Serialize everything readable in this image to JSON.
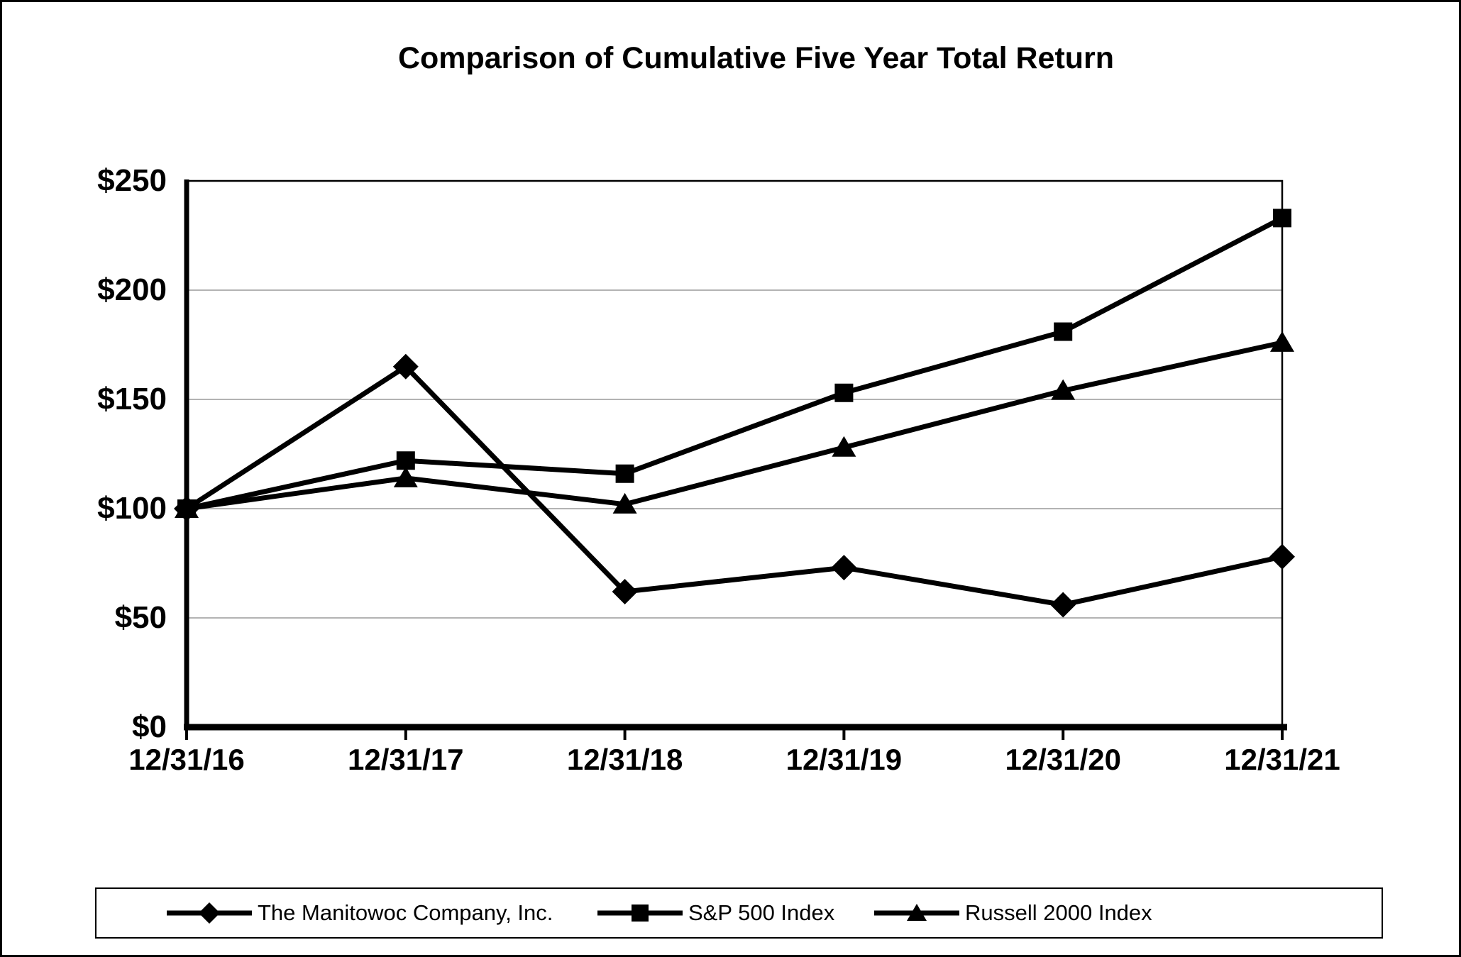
{
  "chart_data": {
    "type": "line",
    "title": "Comparison of Cumulative Five Year Total Return",
    "x_labels": [
      "12/31/16",
      "12/31/17",
      "12/31/18",
      "12/31/19",
      "12/31/20",
      "12/31/21"
    ],
    "y_ticks": [
      "$0",
      "$50",
      "$100",
      "$150",
      "$200",
      "$250"
    ],
    "y_tick_values": [
      0,
      50,
      100,
      150,
      200,
      250
    ],
    "ylim": [
      0,
      250
    ],
    "grid": "horizontal-gridlines",
    "legend_position": "bottom",
    "series": [
      {
        "name": "The Manitowoc Company, Inc.",
        "marker": "diamond",
        "color": "#000000",
        "values": [
          100,
          165,
          62,
          73,
          56,
          78
        ]
      },
      {
        "name": "S&P 500 Index",
        "marker": "square",
        "color": "#000000",
        "values": [
          100,
          122,
          116,
          153,
          181,
          233
        ]
      },
      {
        "name": "Russell 2000 Index",
        "marker": "triangle",
        "color": "#000000",
        "values": [
          100,
          114,
          102,
          128,
          154,
          176
        ]
      }
    ]
  },
  "colors": {
    "line": "#000000",
    "grid": "#b3b3b3",
    "axis": "#000000",
    "background": "#ffffff",
    "page_border": "#000000"
  }
}
